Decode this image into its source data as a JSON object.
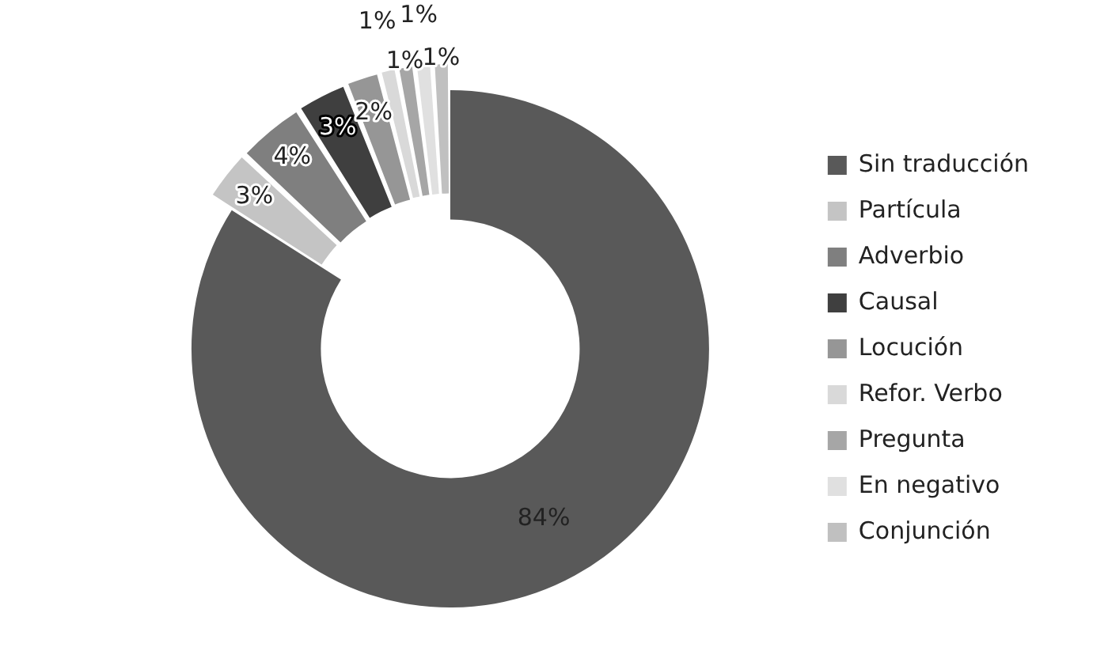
{
  "chart_data": {
    "type": "donut",
    "categories": [
      "Sin traducción",
      "Partícula",
      "Adverbio",
      "Causal",
      "Locución",
      "Refor. Verbo",
      "Pregunta",
      "En negativo",
      "Conjunción"
    ],
    "values": [
      84,
      3,
      4,
      3,
      2,
      1,
      1,
      1,
      1
    ],
    "value_labels": [
      "84%",
      "3%",
      "4%",
      "3%",
      "2%",
      "1%",
      "1%",
      "1%",
      "1%"
    ],
    "colors": [
      "#595959",
      "#c4c4c4",
      "#7f7f7f",
      "#3f3f3f",
      "#969696",
      "#d9d9d9",
      "#a6a6a6",
      "#e0e0e0",
      "#c0c0c0"
    ],
    "legend": "right"
  }
}
